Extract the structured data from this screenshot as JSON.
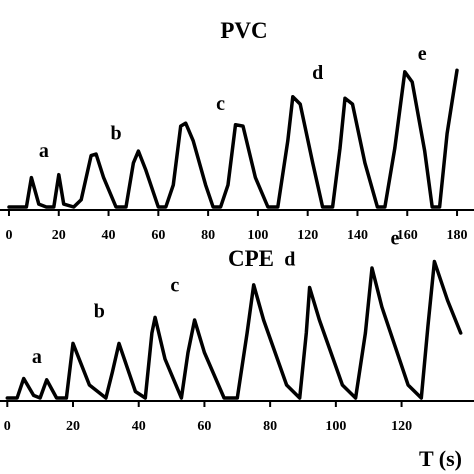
{
  "chart_data": [
    {
      "type": "line",
      "title": "PVC",
      "xlabel": "",
      "ylabel": "",
      "xlim": [
        -2,
        184
      ],
      "ylim": [
        0,
        1
      ],
      "grid": false,
      "ticks": [
        "0",
        "20",
        "40",
        "60",
        "80",
        "100",
        "120",
        "140",
        "160",
        "180"
      ],
      "tick_values": [
        0,
        20,
        40,
        60,
        80,
        100,
        120,
        140,
        160,
        180
      ],
      "annotations": [
        {
          "text": "a",
          "x": 14,
          "y": 0.34
        },
        {
          "text": "b",
          "x": 43,
          "y": 0.46
        },
        {
          "text": "c",
          "x": 85,
          "y": 0.66
        },
        {
          "text": "d",
          "x": 124,
          "y": 0.87
        },
        {
          "text": "e",
          "x": 166,
          "y": 1.0
        }
      ],
      "series": [
        {
          "x": [
            0,
            7,
            9,
            12,
            15,
            18,
            20,
            22,
            26,
            29,
            33,
            35,
            38,
            43,
            47,
            50,
            52,
            55,
            60,
            63,
            66,
            69,
            71,
            74,
            79,
            82,
            85,
            88,
            91,
            94,
            99,
            104,
            108,
            112,
            114,
            117,
            122,
            126,
            130,
            133,
            135,
            138,
            143,
            148,
            151,
            155,
            159,
            162,
            167,
            170,
            173,
            176,
            180
          ],
          "y": [
            0,
            0,
            0.2,
            0.02,
            0,
            0,
            0.22,
            0.02,
            0,
            0.05,
            0.35,
            0.36,
            0.2,
            0,
            0,
            0.3,
            0.38,
            0.25,
            0,
            0,
            0.15,
            0.55,
            0.57,
            0.45,
            0.15,
            0,
            0,
            0.15,
            0.56,
            0.55,
            0.2,
            0,
            0,
            0.45,
            0.75,
            0.7,
            0.3,
            0,
            0,
            0.4,
            0.74,
            0.7,
            0.3,
            0,
            0,
            0.4,
            0.92,
            0.85,
            0.38,
            0,
            0,
            0.5,
            0.93
          ]
        }
      ]
    },
    {
      "type": "line",
      "title": "CPE",
      "xlabel": "T (s)",
      "ylabel": "",
      "xlim": [
        -1,
        139
      ],
      "ylim": [
        0,
        1
      ],
      "grid": false,
      "ticks": [
        "0",
        "20",
        "40",
        "60",
        "80",
        "100",
        "120"
      ],
      "tick_values": [
        0,
        20,
        40,
        60,
        80,
        100,
        120
      ],
      "annotations": [
        {
          "text": "a",
          "x": 9,
          "y": 0.27
        },
        {
          "text": "b",
          "x": 28,
          "y": 0.62
        },
        {
          "text": "c",
          "x": 51,
          "y": 0.82
        },
        {
          "text": "d",
          "x": 86,
          "y": 1.02
        },
        {
          "text": "e",
          "x": 118,
          "y": 1.18
        }
      ],
      "series": [
        {
          "x": [
            0,
            3,
            5,
            8,
            10,
            12,
            15,
            18,
            20,
            25,
            30,
            32,
            34,
            39,
            42,
            44,
            45,
            48,
            53,
            55,
            57,
            60,
            66,
            70,
            73,
            75,
            78,
            85,
            89,
            91,
            92,
            95,
            102,
            106,
            109,
            111,
            114,
            122,
            126,
            128,
            130,
            134,
            138
          ],
          "y": [
            0,
            0,
            0.15,
            0.02,
            0,
            0.14,
            0,
            0,
            0.42,
            0.1,
            0,
            0.2,
            0.42,
            0.05,
            0,
            0.5,
            0.62,
            0.3,
            0,
            0.35,
            0.6,
            0.35,
            0,
            0,
            0.5,
            0.87,
            0.6,
            0.1,
            0,
            0.5,
            0.85,
            0.6,
            0.1,
            0,
            0.5,
            1.0,
            0.7,
            0.1,
            0,
            0.55,
            1.05,
            0.75,
            0.5
          ]
        }
      ]
    }
  ]
}
